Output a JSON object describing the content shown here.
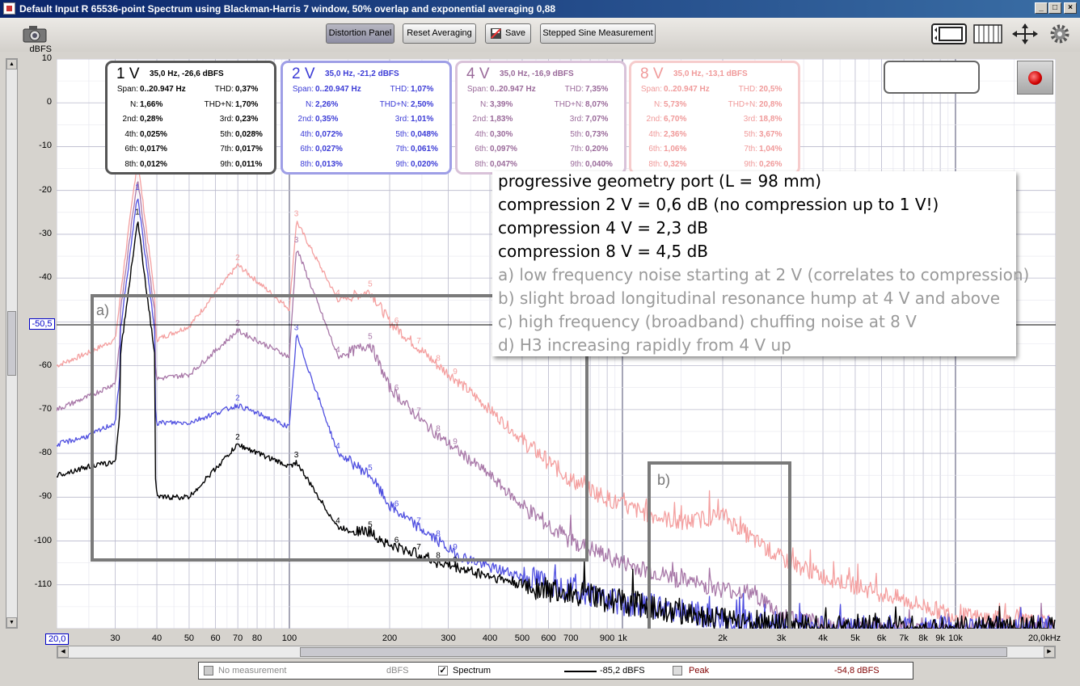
{
  "window": {
    "title": "Default Input R 65536-point Spectrum using Blackman-Harris 7 window, 50% overlap and exponential averaging 0,88",
    "buttons": {
      "minimize": "_",
      "maximize": "□",
      "close": "×"
    }
  },
  "toolbar": {
    "distortion_panel": "Distortion Panel",
    "reset_averaging": "Reset Averaging",
    "save": "Save",
    "stepped_sine": "Stepped Sine Measurement"
  },
  "y_axis": {
    "unit": "dBFS",
    "ticks": [
      "10",
      "0",
      "-10",
      "-20",
      "-30",
      "-40",
      "-50,5",
      "-60",
      "-70",
      "-80",
      "-90",
      "-100",
      "-110"
    ],
    "marker": "-50,5"
  },
  "x_axis": {
    "start_marker": "20,0",
    "ticks": [
      "30",
      "40",
      "50",
      "60",
      "70",
      "80",
      "100",
      "200",
      "300",
      "400",
      "500",
      "600",
      "700",
      "900",
      "1k",
      "2k",
      "3k",
      "4k",
      "5k",
      "6k",
      "7k",
      "8k",
      "9k",
      "10k",
      "20,0kHz"
    ]
  },
  "distortion_boxes": [
    {
      "level": "1 V",
      "summary": "35,0 Hz, -26,6 dBFS",
      "color": "#000000",
      "border": "#555555",
      "span_label": "Span:",
      "span": "0..20.947 Hz",
      "thd_label": "THD:",
      "thd": "0,37%",
      "n_label": "N:",
      "n": "1,66%",
      "thdn_label": "THD+N:",
      "thdn": "1,70%",
      "h2_label": "2nd:",
      "h2": "0,28%",
      "h3_label": "3rd:",
      "h3": "0,23%",
      "h4_label": "4th:",
      "h4": "0,025%",
      "h5_label": "5th:",
      "h5": "0,028%",
      "h6_label": "6th:",
      "h6": "0,017%",
      "h7_label": "7th:",
      "h7": "0,017%",
      "h8_label": "8th:",
      "h8": "0,012%",
      "h9_label": "9th:",
      "h9": "0,011%"
    },
    {
      "level": "2 V",
      "summary": "35,0 Hz, -21,2 dBFS",
      "color": "#3b3bd6",
      "border": "#9e9ee6",
      "span_label": "Span:",
      "span": "0..20.947 Hz",
      "thd_label": "THD:",
      "thd": "1,07%",
      "n_label": "N:",
      "n": "2,26%",
      "thdn_label": "THD+N:",
      "thdn": "2,50%",
      "h2_label": "2nd:",
      "h2": "0,35%",
      "h3_label": "3rd:",
      "h3": "1,01%",
      "h4_label": "4th:",
      "h4": "0,072%",
      "h5_label": "5th:",
      "h5": "0,048%",
      "h6_label": "6th:",
      "h6": "0,027%",
      "h7_label": "7th:",
      "h7": "0,061%",
      "h8_label": "8th:",
      "h8": "0,013%",
      "h9_label": "9th:",
      "h9": "0,020%"
    },
    {
      "level": "4 V",
      "summary": "35,0 Hz, -16,9 dBFS",
      "color": "#9a6a9a",
      "border": "#d9c2d9",
      "span_label": "Span:",
      "span": "0..20.947 Hz",
      "thd_label": "THD:",
      "thd": "7,35%",
      "n_label": "N:",
      "n": "3,39%",
      "thdn_label": "THD+N:",
      "thdn": "8,07%",
      "h2_label": "2nd:",
      "h2": "1,83%",
      "h3_label": "3rd:",
      "h3": "7,07%",
      "h4_label": "4th:",
      "h4": "0,30%",
      "h5_label": "5th:",
      "h5": "0,73%",
      "h6_label": "6th:",
      "h6": "0,097%",
      "h7_label": "7th:",
      "h7": "0,20%",
      "h8_label": "8th:",
      "h8": "0,047%",
      "h9_label": "9th:",
      "h9": "0,040%"
    },
    {
      "level": "8 V",
      "summary": "35,0 Hz, -13,1 dBFS",
      "color": "#f09a9a",
      "border": "#f6cccc",
      "span_label": "Span:",
      "span": "0..20.947 Hz",
      "thd_label": "THD:",
      "thd": "20,5%",
      "n_label": "N:",
      "n": "5,73%",
      "thdn_label": "THD+N:",
      "thdn": "20,8%",
      "h2_label": "2nd:",
      "h2": "6,70%",
      "h3_label": "3rd:",
      "h3": "18,8%",
      "h4_label": "4th:",
      "h4": "2,36%",
      "h5_label": "5th:",
      "h5": "3,67%",
      "h6_label": "6th:",
      "h6": "1,06%",
      "h7_label": "7th:",
      "h7": "1,04%",
      "h8_label": "8th:",
      "h8": "0,32%",
      "h9_label": "9th:",
      "h9": "0,26%"
    }
  ],
  "annotation": {
    "lines_bold": [
      "progressive geometry port (L = 98 mm)",
      "compression 2 V = 0,6 dB (no compression up to 1 V!)",
      "compression 4 V = 2,3 dB",
      "compression 8 V = 4,5 dB"
    ],
    "lines_grey": [
      "a) low frequency noise starting at 2 V (correlates to compression)",
      "b) slight broad longitudinal resonance hump at 4 V and above",
      "c) high frequency (broadband) chuffing noise at 8 V",
      "d) H3 increasing rapidly from 4 V up"
    ]
  },
  "regions": {
    "a": "a)",
    "b": "b)"
  },
  "harmonic_labels": [
    "1",
    "2",
    "3",
    "4",
    "5",
    "6",
    "7",
    "8",
    "9"
  ],
  "legend": {
    "no_measurement": "No measurement",
    "unit1": "dBFS",
    "spectrum": "Spectrum",
    "spectrum_value": "-85,2 dBFS",
    "peak": "Peak",
    "peak_value": "-54,8 dBFS"
  },
  "chart_data": {
    "type": "line",
    "xlabel": "",
    "ylabel": "dBFS",
    "x_scale": "log",
    "xlim": [
      20,
      20000
    ],
    "ylim": [
      -120,
      10
    ],
    "grid": true,
    "series": [
      {
        "name": "8 V",
        "color": "#f4a0a0",
        "x": [
          20,
          25,
          30,
          35,
          40,
          50,
          70,
          100,
          105,
          140,
          175,
          200,
          245,
          280,
          315,
          400,
          500,
          700,
          1000,
          1500,
          2000,
          2500,
          3000,
          4000,
          6000,
          10000,
          20000
        ],
        "y": [
          -60,
          -57,
          -54,
          -13,
          -54,
          -51,
          -37,
          -47,
          -27,
          -45,
          -43,
          -50,
          -56,
          -60,
          -63,
          -70,
          -77,
          -86,
          -92,
          -96,
          -94,
          -100,
          -104,
          -108,
          -112,
          -117,
          -119
        ]
      },
      {
        "name": "4 V",
        "color": "#a878a8",
        "x": [
          20,
          25,
          30,
          35,
          40,
          50,
          70,
          100,
          105,
          140,
          175,
          200,
          245,
          280,
          315,
          400,
          500,
          700,
          1000,
          1500,
          2000,
          2500,
          3000,
          4000,
          6000,
          10000,
          20000
        ],
        "y": [
          -70,
          -67,
          -64,
          -17,
          -63,
          -62,
          -52,
          -58,
          -33,
          -58,
          -55,
          -65,
          -72,
          -76,
          -79,
          -85,
          -92,
          -100,
          -105,
          -109,
          -111,
          -112,
          -117,
          -119,
          -120,
          -120,
          -120
        ]
      },
      {
        "name": "2 V",
        "color": "#5050e0",
        "x": [
          20,
          25,
          30,
          35,
          40,
          50,
          70,
          100,
          105,
          140,
          175,
          200,
          245,
          280,
          315,
          400,
          500,
          700,
          1000,
          1500,
          2000,
          3000,
          4000,
          20000
        ],
        "y": [
          -78,
          -76,
          -73,
          -21,
          -73,
          -73,
          -69,
          -74,
          -53,
          -80,
          -85,
          -92,
          -97,
          -100,
          -103,
          -106,
          -108,
          -111,
          -114,
          -116,
          -118,
          -119,
          -120,
          -120
        ]
      },
      {
        "name": "1 V",
        "color": "#000000",
        "x": [
          20,
          25,
          30,
          35,
          40,
          50,
          70,
          100,
          105,
          140,
          175,
          200,
          245,
          280,
          315,
          400,
          500,
          700,
          1000,
          1500,
          2000,
          3000,
          4000,
          20000
        ],
        "y": [
          -85,
          -83,
          -82,
          -26.6,
          -90,
          -90,
          -78,
          -83,
          -82,
          -97,
          -98,
          -101,
          -103,
          -105,
          -106,
          -108,
          -110,
          -112,
          -114,
          -116,
          -118,
          -119,
          -120,
          -120
        ]
      }
    ]
  }
}
